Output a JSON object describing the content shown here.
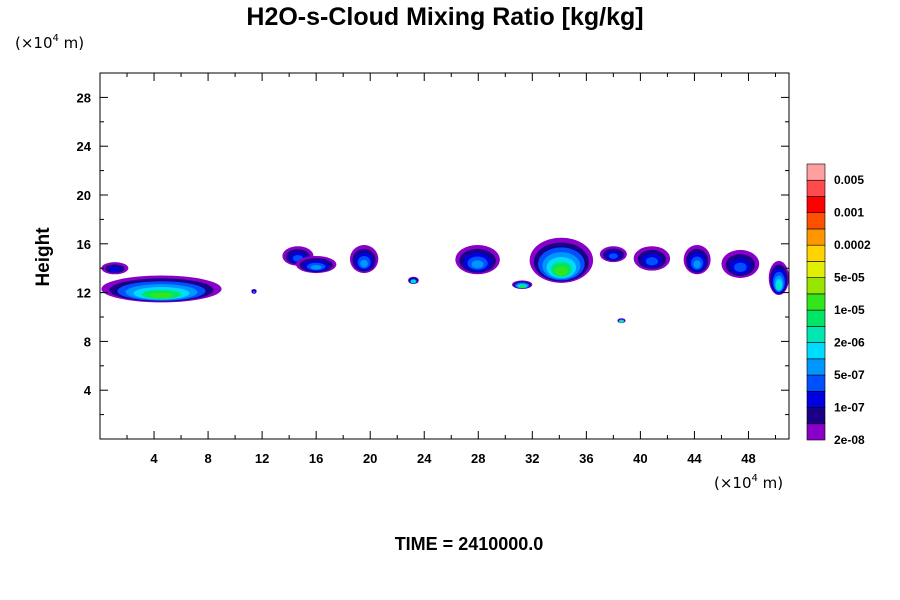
{
  "chart_data": {
    "type": "heatmap",
    "title": "H2O-s-Cloud Mixing Ratio [kg/kg]",
    "ylabel": "Height",
    "xlabel": "",
    "x_unit": {
      "pre": "(×10",
      "exp": "4",
      "post": " m)"
    },
    "y_unit": {
      "pre": "(×10",
      "exp": "4",
      "post": " m)"
    },
    "x_ticks": [
      4,
      8,
      12,
      16,
      20,
      24,
      28,
      32,
      36,
      40,
      44,
      48
    ],
    "y_ticks": [
      4,
      8,
      12,
      16,
      20,
      24,
      28
    ],
    "xlim": [
      0,
      51
    ],
    "ylim": [
      0,
      30
    ],
    "footer": "TIME = 2410000.0",
    "colorbar": {
      "labels": [
        "0.005",
        "0.001",
        "0.0002",
        "5e-05",
        "1e-05",
        "2e-06",
        "5e-07",
        "1e-07",
        "2e-08"
      ],
      "colors": [
        "#8a00c8",
        "#1a0088",
        "#0000e0",
        "#0050ff",
        "#0096ff",
        "#00dcff",
        "#00e6b4",
        "#00e664",
        "#32e61e",
        "#96e600",
        "#e1f000",
        "#ffd200",
        "#ff9600",
        "#ff5000",
        "#ff0000",
        "#ff4b4b",
        "#ffa0a0"
      ]
    },
    "cloud_patches": [
      {
        "x": [
          0.1,
          2.1
        ],
        "y": [
          13.5,
          14.5
        ],
        "level": 2
      },
      {
        "x": [
          0.1,
          9.0
        ],
        "y": [
          11.2,
          13.4
        ],
        "level": 8
      },
      {
        "x": [
          11.2,
          11.6
        ],
        "y": [
          11.9,
          12.3
        ],
        "level": 4
      },
      {
        "x": [
          13.5,
          15.8
        ],
        "y": [
          14.2,
          15.8
        ],
        "level": 3
      },
      {
        "x": [
          14.5,
          17.5
        ],
        "y": [
          13.6,
          15.0
        ],
        "level": 4
      },
      {
        "x": [
          18.5,
          20.6
        ],
        "y": [
          13.6,
          15.9
        ],
        "level": 4
      },
      {
        "x": [
          22.8,
          23.6
        ],
        "y": [
          12.7,
          13.3
        ],
        "level": 7
      },
      {
        "x": [
          26.3,
          29.6
        ],
        "y": [
          13.5,
          15.9
        ],
        "level": 4
      },
      {
        "x": [
          30.5,
          32.0
        ],
        "y": [
          12.3,
          13.0
        ],
        "level": 8
      },
      {
        "x": [
          31.8,
          36.5
        ],
        "y": [
          12.8,
          16.5
        ],
        "level": 8
      },
      {
        "x": [
          37.0,
          39.0
        ],
        "y": [
          14.5,
          15.8
        ],
        "level": 3
      },
      {
        "x": [
          38.3,
          38.9
        ],
        "y": [
          9.5,
          9.9
        ],
        "level": 9
      },
      {
        "x": [
          39.5,
          42.2
        ],
        "y": [
          13.8,
          15.8
        ],
        "level": 3
      },
      {
        "x": [
          43.2,
          45.2
        ],
        "y": [
          13.5,
          15.9
        ],
        "level": 4
      },
      {
        "x": [
          46.0,
          48.8
        ],
        "y": [
          13.2,
          15.5
        ],
        "level": 3
      },
      {
        "x": [
          49.5,
          51.0
        ],
        "y": [
          11.8,
          14.6
        ],
        "level": 6
      }
    ]
  }
}
